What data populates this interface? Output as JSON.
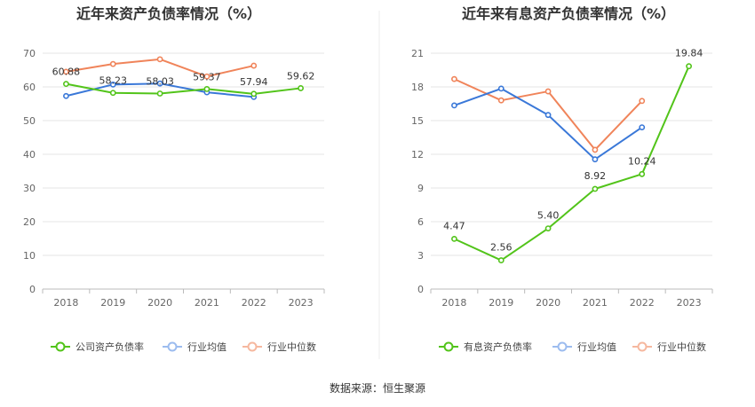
{
  "source": "数据来源：恒生聚源",
  "chart_data": [
    {
      "type": "line",
      "title": "近年来资产负债率情况（%）",
      "categories": [
        "2018",
        "2019",
        "2020",
        "2021",
        "2022",
        "2023"
      ],
      "ylim": [
        0,
        70
      ],
      "yticks": [
        0,
        10,
        20,
        30,
        40,
        50,
        60,
        70
      ],
      "grid": true,
      "legend": "bottom",
      "series": [
        {
          "name": "公司资产负债率",
          "color": "#52c41a",
          "values": [
            60.88,
            58.23,
            58.03,
            59.37,
            57.94,
            59.62
          ],
          "labels": [
            "60.88",
            "58.23",
            "58.03",
            "59.37",
            "57.94",
            "59.62"
          ]
        },
        {
          "name": "行业均值",
          "color": "#3a78d8",
          "values": [
            57.3,
            60.7,
            61.0,
            58.4,
            57.0,
            null
          ]
        },
        {
          "name": "行业中位数",
          "color": "#f0845a",
          "values": [
            64.5,
            66.8,
            68.2,
            63.1,
            66.3,
            null
          ]
        }
      ]
    },
    {
      "type": "line",
      "title": "近年来有息资产负债率情况（%）",
      "categories": [
        "2018",
        "2019",
        "2020",
        "2021",
        "2022",
        "2023"
      ],
      "ylim": [
        0,
        21
      ],
      "yticks": [
        0,
        3,
        6,
        9,
        12,
        15,
        18,
        21
      ],
      "grid": true,
      "legend": "bottom",
      "series": [
        {
          "name": "有息资产负债率",
          "color": "#52c41a",
          "values": [
            4.47,
            2.56,
            5.4,
            8.92,
            10.24,
            19.84
          ],
          "labels": [
            "4.47",
            "2.56",
            "5.40",
            "8.92",
            "10.24",
            "19.84"
          ]
        },
        {
          "name": "行业均值",
          "color": "#3a78d8",
          "values": [
            16.35,
            17.85,
            15.5,
            11.55,
            14.4,
            null
          ]
        },
        {
          "name": "行业中位数",
          "color": "#f0845a",
          "values": [
            18.7,
            16.8,
            17.6,
            12.4,
            16.75,
            null
          ]
        }
      ]
    }
  ]
}
